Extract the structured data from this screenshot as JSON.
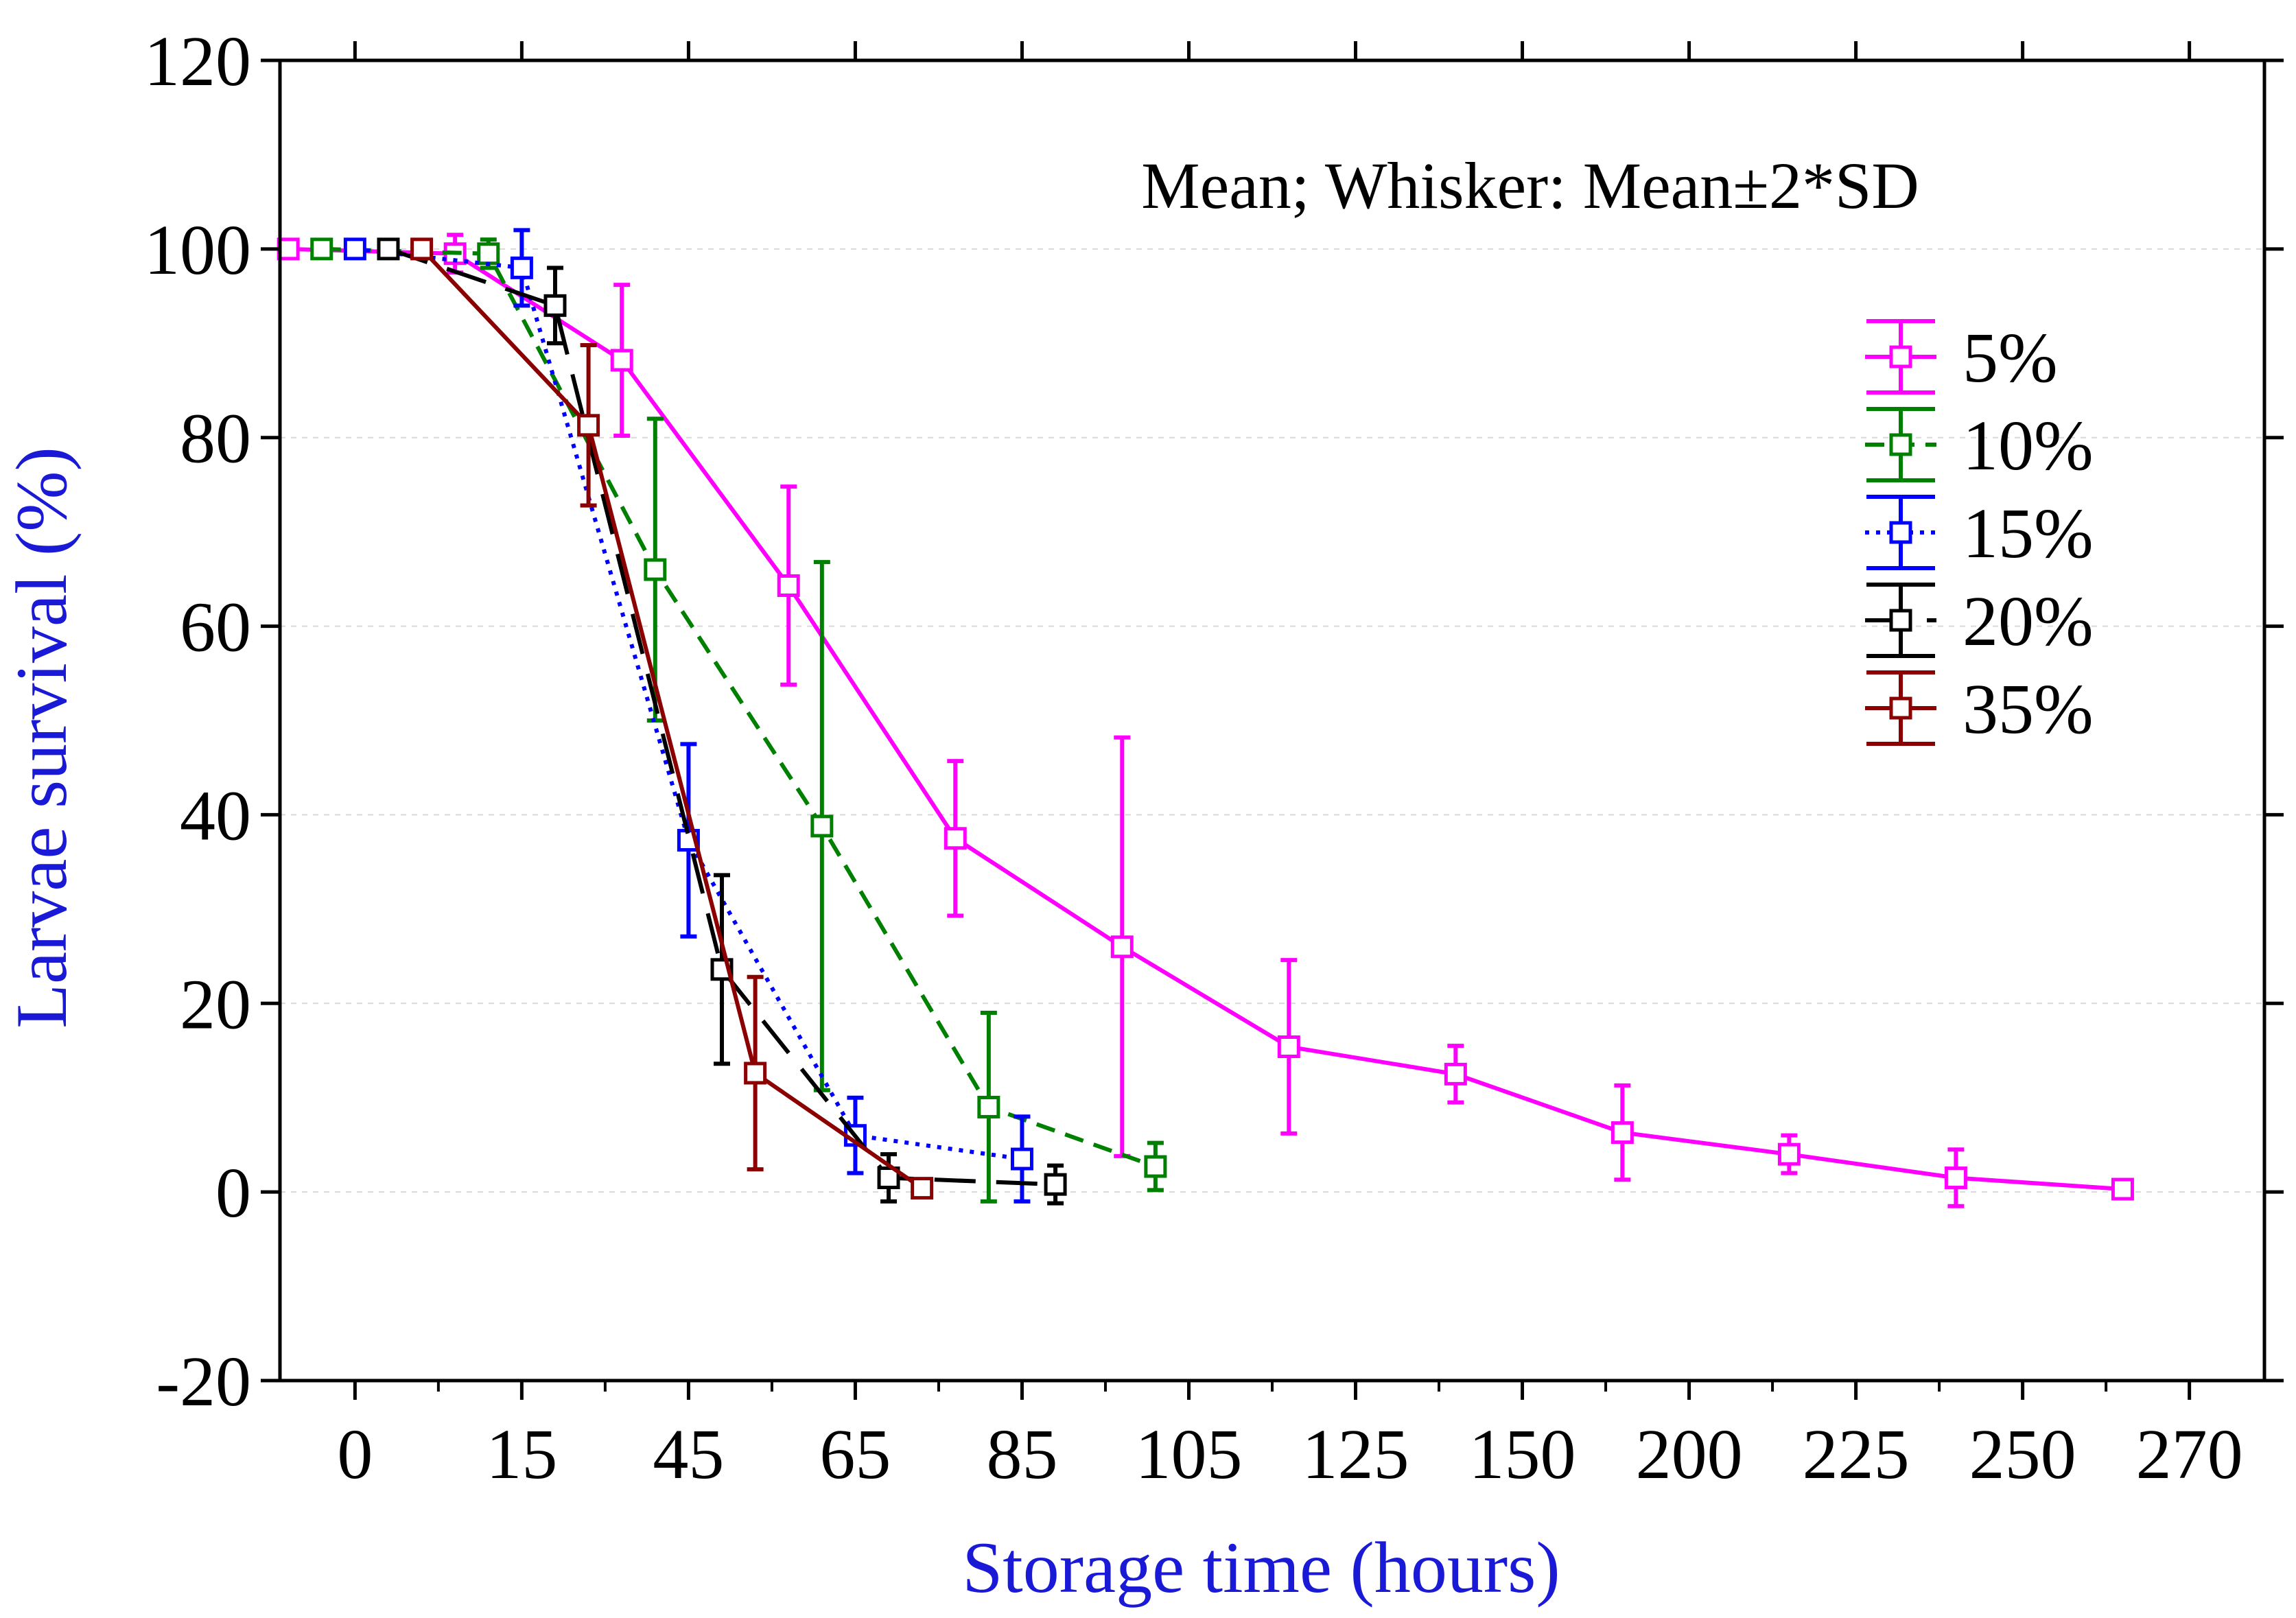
{
  "chart_data": {
    "type": "line",
    "title": "",
    "annotation": "Mean; Whisker: Mean±2*SD",
    "xlabel": "Storage time (hours)",
    "ylabel": "Larvae survival (%)",
    "x_tick_labels": [
      "0",
      "15",
      "45",
      "65",
      "85",
      "105",
      "125",
      "150",
      "200",
      "225",
      "250",
      "270"
    ],
    "y_ticks": [
      -20,
      0,
      20,
      40,
      60,
      80,
      100,
      120
    ],
    "y_tick_labels": [
      "-20",
      "0",
      "20",
      "40",
      "60",
      "80",
      "100",
      "120"
    ],
    "ylim": [
      -20,
      120
    ],
    "xlim": [
      -0.45,
      11.45
    ],
    "grid": true,
    "legend_position": "top-right",
    "colors": {
      "axis_label": "#1a1ad6",
      "grid": "#d9d9d9",
      "axes": "#000000"
    },
    "series": [
      {
        "name": "5%",
        "color": "#ff00ff",
        "dash": "solid",
        "points": [
          {
            "x": -0.4,
            "y": 100,
            "err": 0
          },
          {
            "x": 0.6,
            "y": 99.5,
            "err": 2.0
          },
          {
            "x": 1.6,
            "y": 88.2,
            "err": 8.0
          },
          {
            "x": 2.6,
            "y": 64.3,
            "err": 10.5
          },
          {
            "x": 3.6,
            "y": 37.5,
            "err": 8.2
          },
          {
            "x": 4.6,
            "y": 26.0,
            "err": 22.2
          },
          {
            "x": 5.6,
            "y": 15.4,
            "err": 9.2
          },
          {
            "x": 6.6,
            "y": 12.5,
            "err": 3.0
          },
          {
            "x": 7.6,
            "y": 6.3,
            "err": 5.0
          },
          {
            "x": 8.6,
            "y": 4.0,
            "err": 2.0
          },
          {
            "x": 9.6,
            "y": 1.5,
            "err": 3.0
          },
          {
            "x": 10.6,
            "y": 0.3,
            "err": 0
          }
        ]
      },
      {
        "name": "10%",
        "color": "#008000",
        "dash": "dashed",
        "points": [
          {
            "x": -0.2,
            "y": 100,
            "err": 0
          },
          {
            "x": 0.8,
            "y": 99.5,
            "err": 1.5
          },
          {
            "x": 1.8,
            "y": 66.0,
            "err": 16.0
          },
          {
            "x": 2.8,
            "y": 38.8,
            "err": 28.0
          },
          {
            "x": 3.8,
            "y": 9.0,
            "err": 10.0
          },
          {
            "x": 4.8,
            "y": 2.7,
            "err": 2.5
          }
        ]
      },
      {
        "name": "15%",
        "color": "#0000ff",
        "dash": "dotted",
        "points": [
          {
            "x": 0.0,
            "y": 100,
            "err": 0
          },
          {
            "x": 1.0,
            "y": 98.0,
            "err": 4.0
          },
          {
            "x": 2.0,
            "y": 37.3,
            "err": 10.2
          },
          {
            "x": 3.0,
            "y": 6.0,
            "err": 4.0
          },
          {
            "x": 4.0,
            "y": 3.5,
            "err": 4.5
          }
        ]
      },
      {
        "name": "20%",
        "color": "#000000",
        "dash": "longdash",
        "points": [
          {
            "x": 0.2,
            "y": 100,
            "err": 0
          },
          {
            "x": 1.2,
            "y": 94.0,
            "err": 4.0
          },
          {
            "x": 2.2,
            "y": 23.6,
            "err": 10.0
          },
          {
            "x": 3.2,
            "y": 1.5,
            "err": 2.5
          },
          {
            "x": 4.2,
            "y": 0.8,
            "err": 2.0
          }
        ]
      },
      {
        "name": "35%",
        "color": "#8b0000",
        "dash": "solid",
        "points": [
          {
            "x": 0.4,
            "y": 100,
            "err": 0
          },
          {
            "x": 1.4,
            "y": 81.3,
            "err": 8.5
          },
          {
            "x": 2.4,
            "y": 12.6,
            "err": 10.2
          },
          {
            "x": 3.4,
            "y": 0.4,
            "err": 0
          }
        ]
      }
    ]
  }
}
